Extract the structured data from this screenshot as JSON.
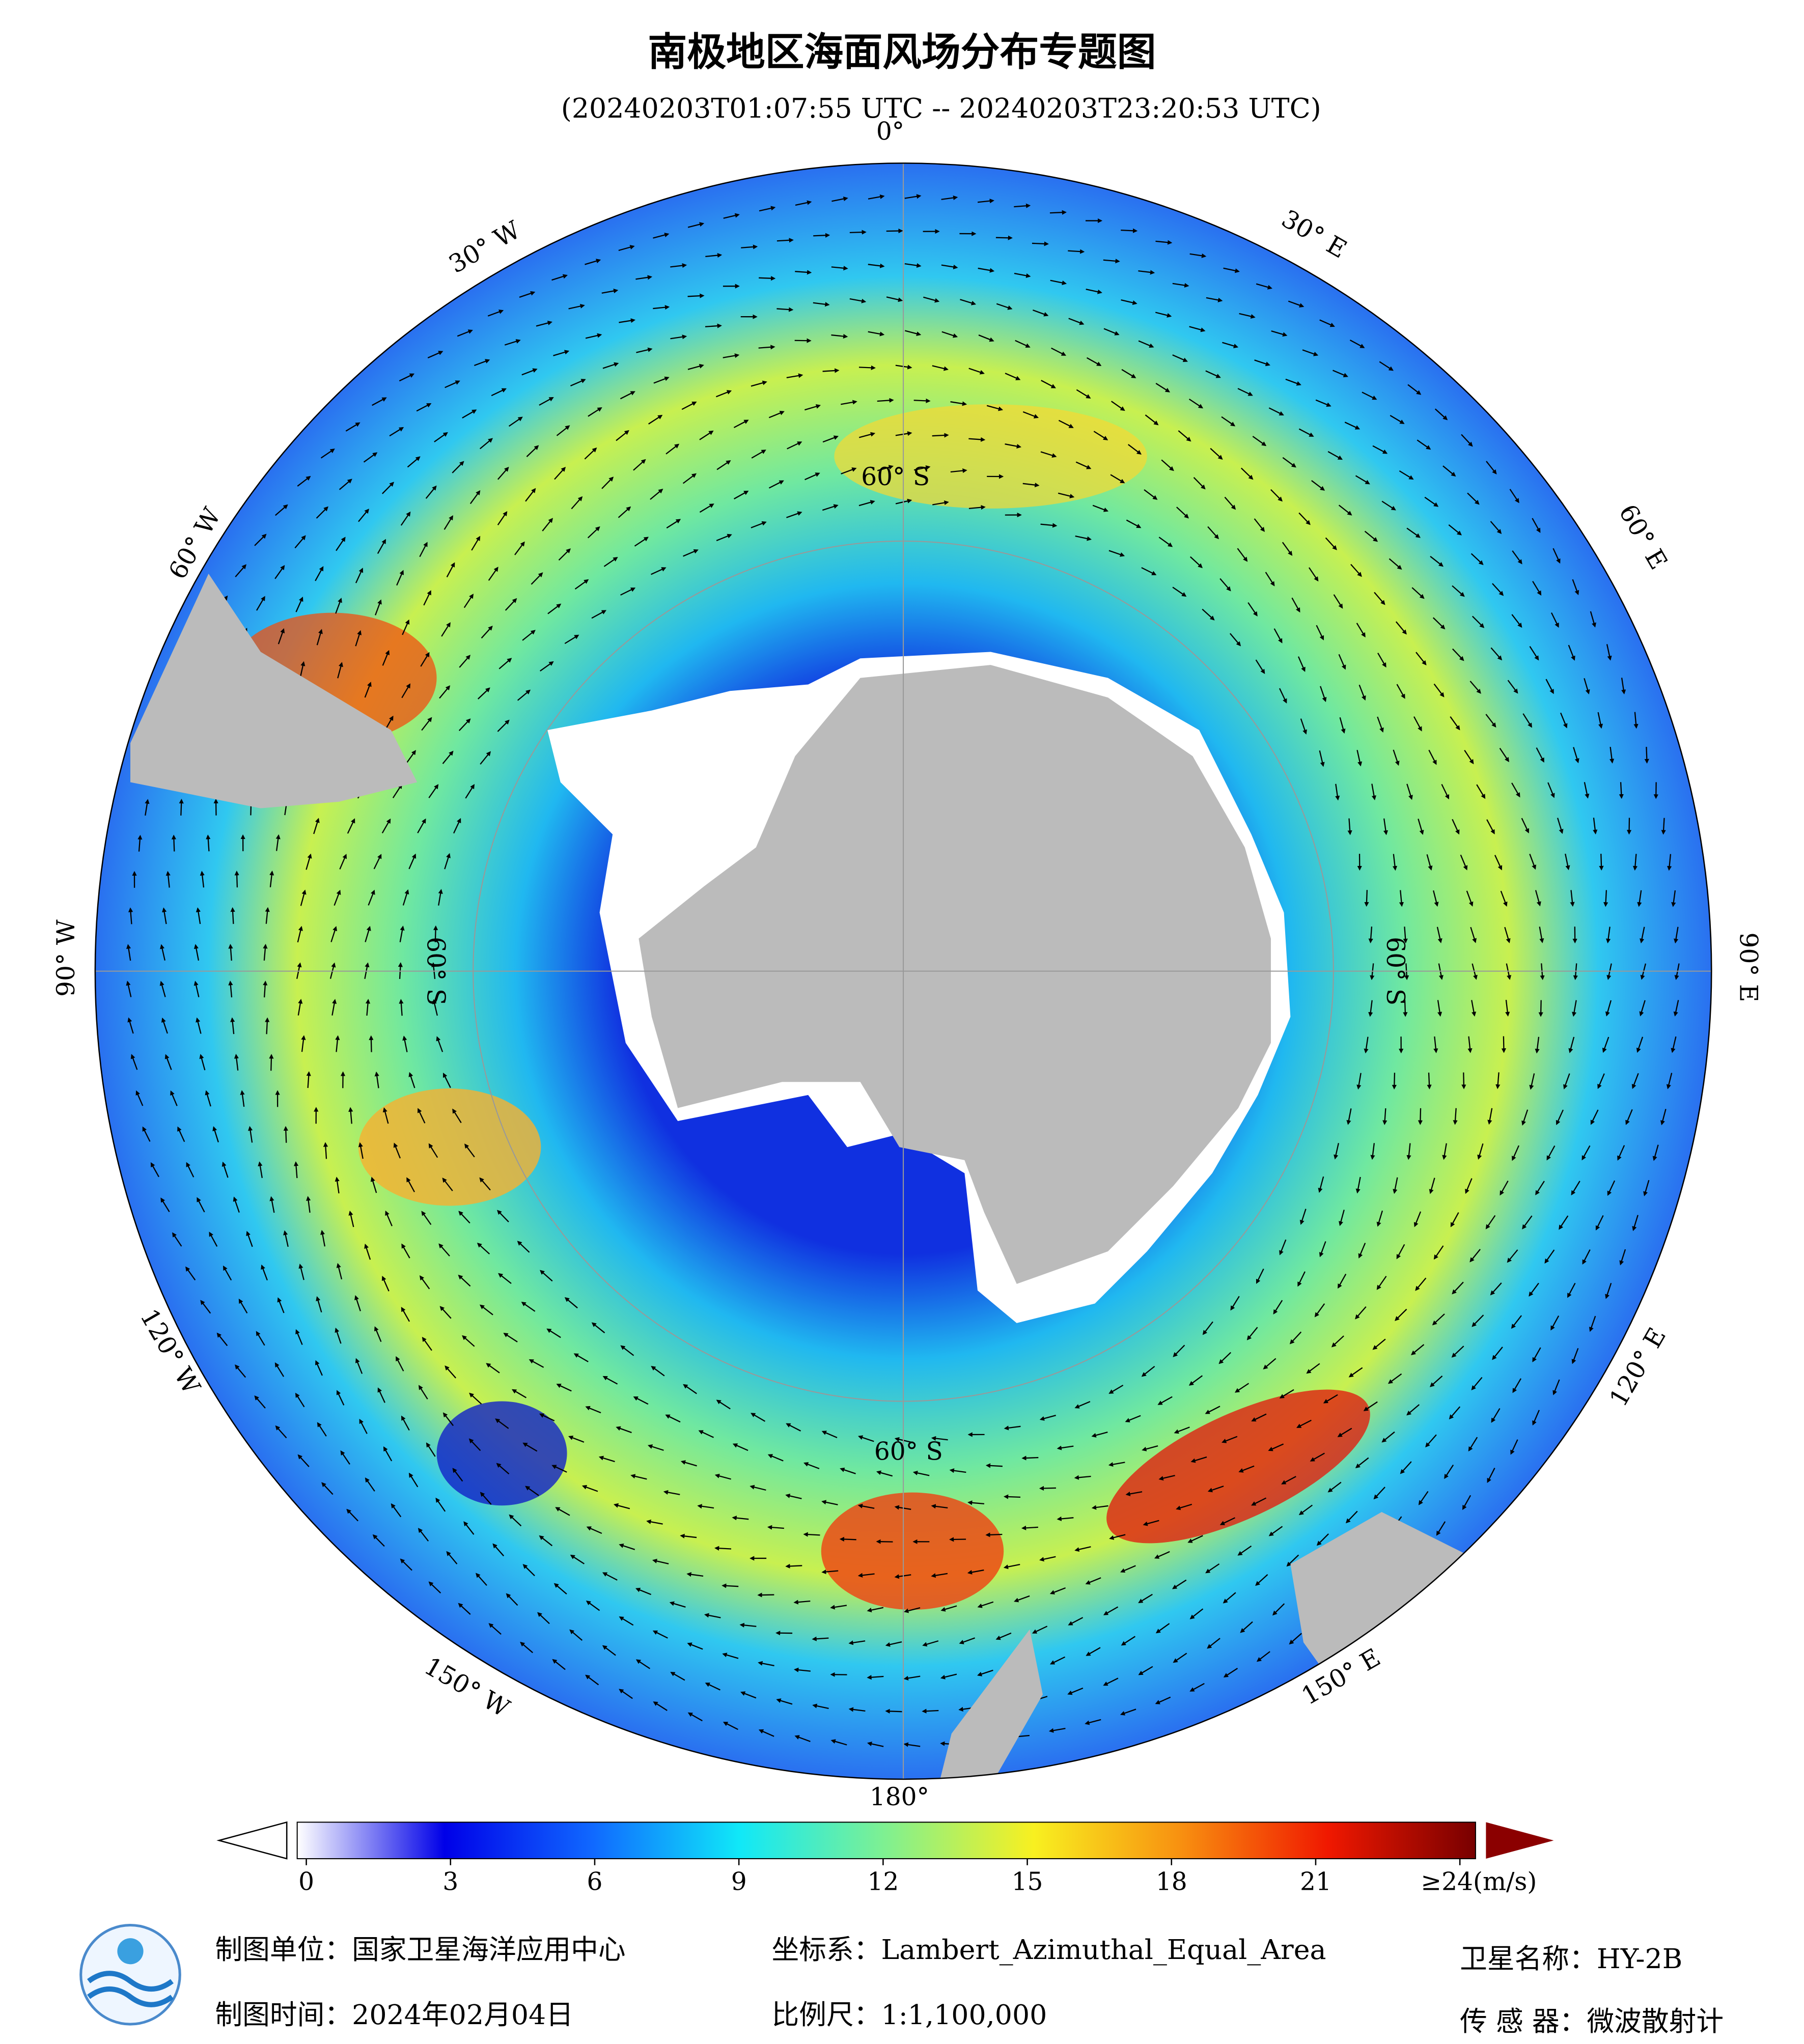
{
  "header": {
    "title": "南极地区海面风场分布专题图",
    "subtitle": "(20240203T01:07:55 UTC -- 20240203T23:20:53 UTC)"
  },
  "map": {
    "longitude_labels": [
      "0°",
      "30° E",
      "60° E",
      "90° E",
      "120° E",
      "150° E",
      "180°",
      "150° W",
      "120° W",
      "90° W",
      "60° W",
      "30° W"
    ],
    "latitude_labels": [
      "60° S",
      "60° S",
      "60° S",
      "60° S"
    ]
  },
  "colorbar": {
    "lim": [
      0,
      24
    ],
    "ticks": [
      0,
      3,
      6,
      9,
      12,
      15,
      18,
      21,
      {
        "value": 24,
        "label": "≥24(m/s)"
      }
    ]
  },
  "footer": {
    "unit": "制图单位：国家卫星海洋应用中心",
    "date": "制图时间：2024年02月04日",
    "crs": "坐标系：Lambert_Azimuthal_Equal_Area",
    "scale": "比例尺：1:1,100,000",
    "satellite": "卫星名称：HY-2B",
    "sensor": "传 感 器：微波散射计"
  }
}
